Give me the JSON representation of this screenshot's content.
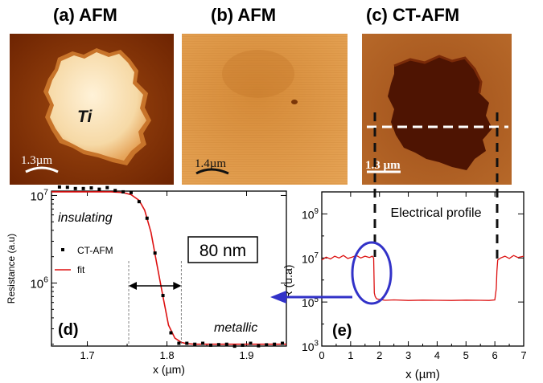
{
  "titles": {
    "a": "(a) AFM",
    "b": "(b) AFM",
    "c": "(c) CT-AFM"
  },
  "image_a": {
    "label": "Ti",
    "scale": "1.3µm"
  },
  "image_b": {
    "scale": "1.4µm"
  },
  "image_c": {
    "scale": "1.3 µm"
  },
  "colors": {
    "afm_dark": "#5a1800",
    "afm_mid": "#b8650f",
    "afm_light": "#f2c48a",
    "fit_red": "#dd1111",
    "marker_blue": "#3232c8"
  },
  "chart_data": [
    {
      "panel": "(d)",
      "type": "scatter",
      "xlabel": "x (µm)",
      "ylabel": "Resistance (a.u)",
      "xlim": [
        1.655,
        1.95
      ],
      "ylim_log10": [
        5.28,
        7.05
      ],
      "x_ticks": [
        "1.7",
        "1.8",
        "1.9"
      ],
      "y_ticks": [
        "10^7",
        "10^6"
      ],
      "annotations": [
        "insulating",
        "metallic",
        "80 nm"
      ],
      "series": [
        {
          "name": "CT-AFM",
          "style": "square-marker",
          "x": [
            1.665,
            1.675,
            1.685,
            1.695,
            1.705,
            1.715,
            1.725,
            1.735,
            1.745,
            1.755,
            1.765,
            1.775,
            1.785,
            1.795,
            1.805,
            1.815,
            1.825,
            1.835,
            1.845,
            1.855,
            1.865,
            1.875,
            1.885,
            1.895,
            1.905,
            1.915,
            1.925,
            1.935,
            1.945
          ],
          "y": [
            12500000,
            12400000,
            12000000,
            12000000,
            12200000,
            11800000,
            12300000,
            11400000,
            11000000,
            10800000,
            8500000,
            5500000,
            2200000,
            720000,
            270000,
            205000,
            205000,
            200000,
            205000,
            195000,
            198000,
            200000,
            190000,
            195000,
            205000,
            192000,
            197000,
            200000,
            205000
          ]
        },
        {
          "name": "fit",
          "style": "line",
          "x": [
            1.655,
            1.67,
            1.69,
            1.71,
            1.73,
            1.745,
            1.755,
            1.765,
            1.772,
            1.78,
            1.787,
            1.795,
            1.802,
            1.81,
            1.818,
            1.825,
            1.835,
            1.85,
            1.87,
            1.9,
            1.95
          ],
          "y": [
            11000000,
            11000000,
            11000000,
            11000000,
            11000000,
            10800000,
            10200000,
            8800000,
            6800000,
            3800000,
            1700000,
            700000,
            330000,
            235000,
            210000,
            203000,
            200000,
            200000,
            200000,
            200000,
            200000
          ]
        }
      ]
    },
    {
      "panel": "(e)",
      "type": "line",
      "xlabel": "x (µm)",
      "ylabel": "R (u.a)",
      "xlim": [
        0,
        7
      ],
      "ylim_log10": [
        3,
        10
      ],
      "x_ticks": [
        "0",
        "1",
        "2",
        "3",
        "4",
        "5",
        "6",
        "7"
      ],
      "y_ticks": [
        "10^3",
        "10^5",
        "10^7",
        "10^9"
      ],
      "annotations": [
        "Electrical profile"
      ],
      "series": [
        {
          "name": "R",
          "x": [
            0,
            0.15,
            0.3,
            0.45,
            0.6,
            0.75,
            0.9,
            1.05,
            1.2,
            1.35,
            1.5,
            1.65,
            1.75,
            1.8,
            1.82,
            1.85,
            1.9,
            2.0,
            2.2,
            2.5,
            3.0,
            3.5,
            4.0,
            4.5,
            5.0,
            5.5,
            5.8,
            6.0,
            6.05,
            6.07,
            6.1,
            6.2,
            6.35,
            6.5,
            6.65,
            6.8,
            7.0
          ],
          "y": [
            8000000,
            11000000,
            9000000,
            12000000,
            10000000,
            13000000,
            9500000,
            11000000,
            13000000,
            10000000,
            12000000,
            10500000,
            12000000,
            10000000,
            260000,
            180000,
            140000,
            130000,
            120000,
            125000,
            118000,
            122000,
            120000,
            118000,
            122000,
            120000,
            118000,
            125000,
            400000,
            2500000,
            8000000,
            10000000,
            12000000,
            9500000,
            13000000,
            10500000,
            12000000
          ]
        }
      ]
    }
  ]
}
